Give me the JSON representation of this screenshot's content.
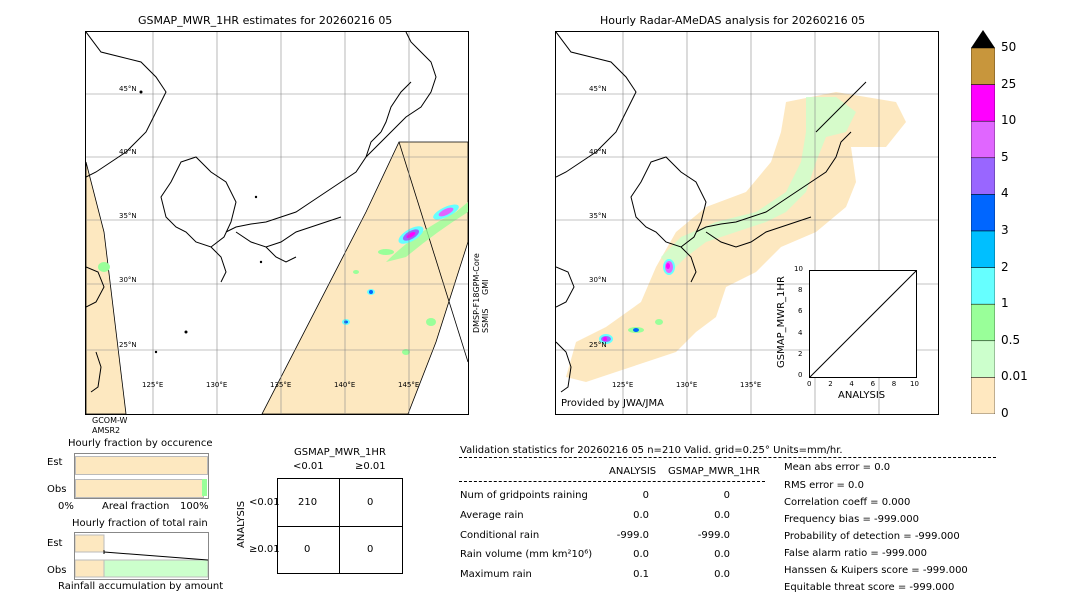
{
  "left_map": {
    "title": "GSMAP_MWR_1HR estimates for 20260216 05",
    "lat_labels": [
      "45°N",
      "40°N",
      "35°N",
      "30°N",
      "25°N"
    ],
    "lon_labels": [
      "125°E",
      "130°E",
      "135°E",
      "140°E",
      "145°E"
    ],
    "swath_label_right": "DMSP-F18GPM-Core\nSSMIS   GMI",
    "swath_label_right_1": "DMSP-F18GPM-Core",
    "swath_label_right_2": "SSMIS",
    "swath_label_right_3": "GMI",
    "swath_label_bottom_1": "GCOM-W",
    "swath_label_bottom_2": "AMSR2"
  },
  "right_map": {
    "title": "Hourly Radar-AMeDAS analysis for 20260216 05",
    "lat_labels": [
      "45°N",
      "40°N",
      "35°N",
      "30°N",
      "25°N"
    ],
    "lon_labels": [
      "125°E",
      "130°E",
      "135°E"
    ],
    "credit": "Provided by JWA/JMA"
  },
  "scatter_inset": {
    "ylabel": "GSMAP_MWR_1HR",
    "xlabel": "ANALYSIS",
    "ticks": [
      "0",
      "2",
      "4",
      "6",
      "8",
      "10"
    ]
  },
  "colorbar": {
    "labels": [
      "50",
      "25",
      "10",
      "5",
      "4",
      "3",
      "2",
      "1",
      "0.5",
      "0.01",
      "0"
    ],
    "colors": [
      "#c8963c",
      "#ff00ff",
      "#e066ff",
      "#9966ff",
      "#0066ff",
      "#00bfff",
      "#66ffff",
      "#99ff99",
      "#ccffcc",
      "#ffe8c0"
    ],
    "over_color": "#000000"
  },
  "fraction_occurrence": {
    "title": "Hourly fraction by occurence",
    "row_est": "Est",
    "row_obs": "Obs",
    "axis_left": "0%",
    "axis_mid": "Areal fraction",
    "axis_right": "100%",
    "est_fraction": 1.0,
    "obs_fraction": 1.0
  },
  "fraction_total": {
    "title": "Hourly fraction of total rain",
    "row_est": "Est",
    "row_obs": "Obs",
    "axis_label": "Rainfall accumulation by amount"
  },
  "contingency": {
    "title": "GSMAP_MWR_1HR",
    "col_lt": "<0.01",
    "col_ge": "≥0.01",
    "side_label": "ANALYSIS",
    "row_lt": "<0.01",
    "row_ge": "≥0.01",
    "cells": [
      "210",
      "0",
      "0",
      "0"
    ]
  },
  "validation": {
    "header": "Validation statistics for 20260216 05  n=210 Valid. grid=0.25° Units=mm/hr.",
    "col_analysis": "ANALYSIS",
    "col_gsmap": "GSMAP_MWR_1HR",
    "rows": [
      {
        "label": "Num of gridpoints raining",
        "analysis": "0",
        "gsmap": "0"
      },
      {
        "label": "Average rain",
        "analysis": "0.0",
        "gsmap": "0.0"
      },
      {
        "label": "Conditional rain",
        "analysis": "-999.0",
        "gsmap": "-999.0"
      },
      {
        "label": "Rain volume (mm km²10⁶)",
        "analysis": "0.0",
        "gsmap": "0.0"
      },
      {
        "label": "Maximum rain",
        "analysis": "0.1",
        "gsmap": "0.0"
      }
    ],
    "scores": [
      "Mean abs error =    0.0",
      "RMS error =    0.0",
      "Correlation coeff =  0.000",
      "Frequency bias = -999.000",
      "Probability of detection = -999.000",
      "False alarm ratio = -999.000",
      "Hanssen & Kuipers score = -999.000",
      "Equitable threat score = -999.000"
    ]
  },
  "chart_data": [
    {
      "type": "scatter",
      "title": "",
      "xlabel": "ANALYSIS",
      "ylabel": "GSMAP_MWR_1HR",
      "xlim": [
        0,
        10
      ],
      "ylim": [
        0,
        10
      ],
      "x_ticks": [
        0,
        2,
        4,
        6,
        8,
        10
      ],
      "y_ticks": [
        0,
        2,
        4,
        6,
        8,
        10
      ],
      "diagonal": true
    },
    {
      "type": "bar",
      "title": "Hourly fraction by occurence",
      "categories": [
        "Est",
        "Obs"
      ],
      "values": [
        1.0,
        1.0
      ],
      "xlabel": "Areal fraction"
    },
    {
      "type": "table",
      "title": "GSMAP_MWR_1HR",
      "columns": [
        "<0.01",
        "≥0.01"
      ],
      "rows": [
        "<0.01",
        "≥0.01"
      ],
      "values": [
        [
          210,
          0
        ],
        [
          0,
          0
        ]
      ]
    }
  ]
}
